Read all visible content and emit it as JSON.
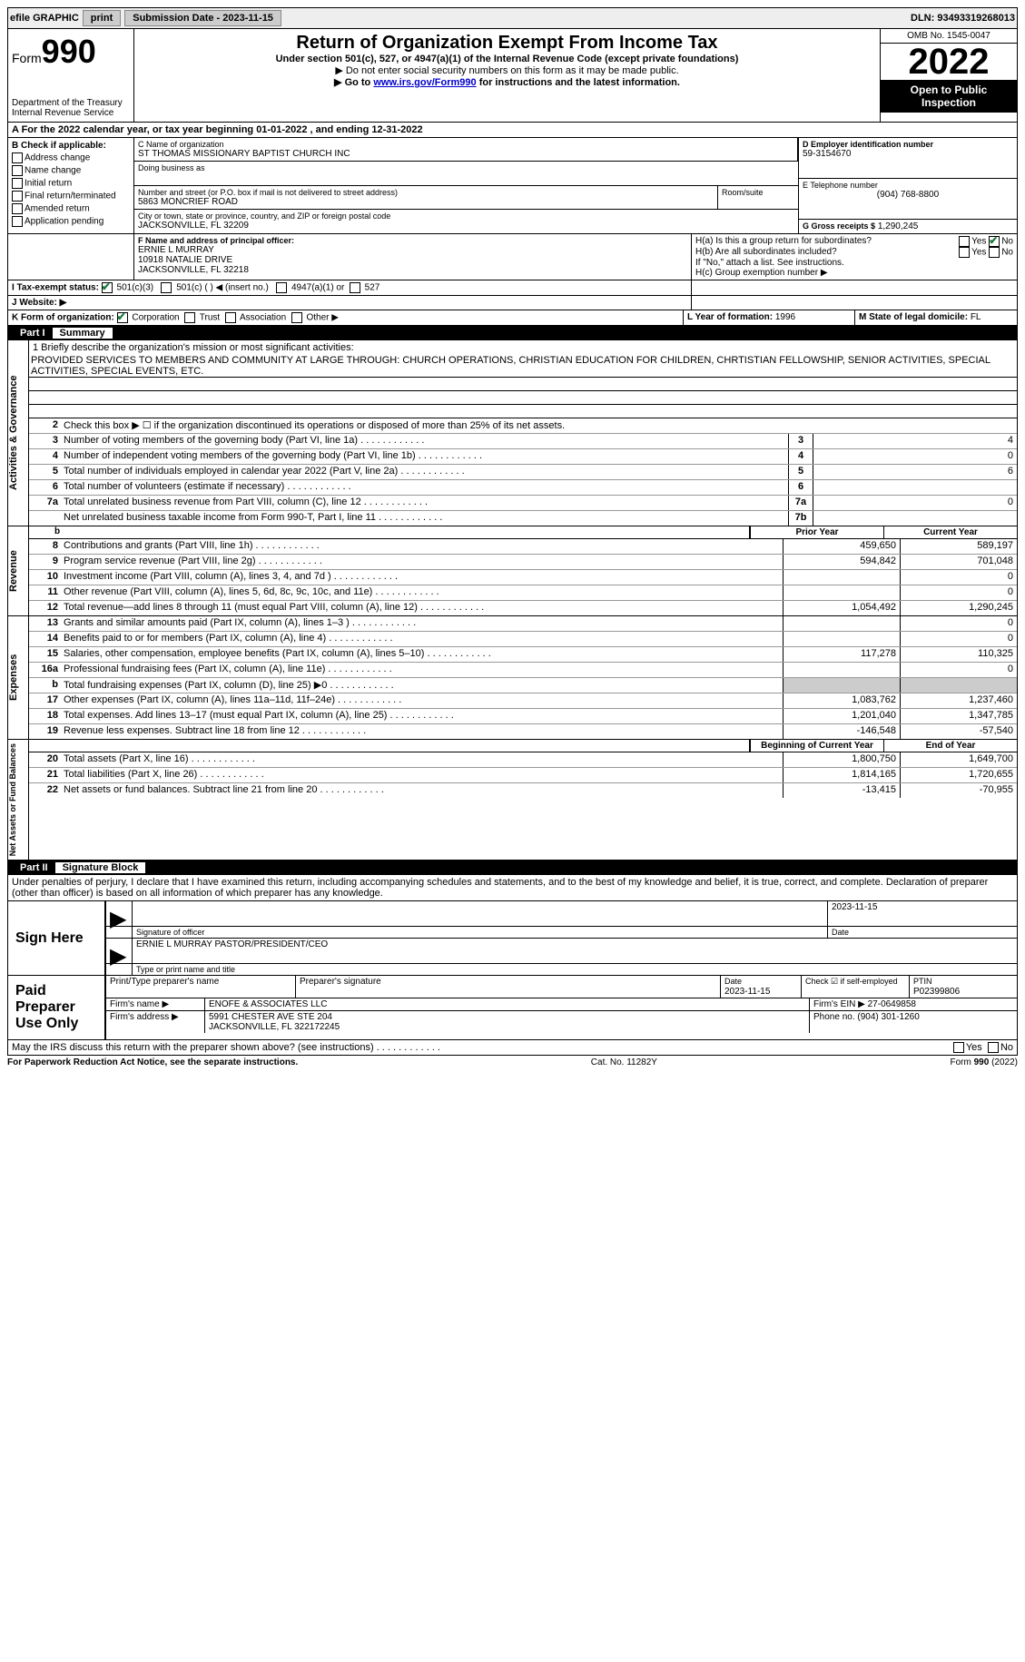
{
  "topbar": {
    "efile": "efile GRAPHIC",
    "print": "print",
    "sub_label": "Submission Date - 2023-11-15",
    "dln_label": "DLN: 93493319268013"
  },
  "header": {
    "form_word": "Form",
    "form_num": "990",
    "dept": "Department of the Treasury",
    "irs": "Internal Revenue Service",
    "title": "Return of Organization Exempt From Income Tax",
    "sub1": "Under section 501(c), 527, or 4947(a)(1) of the Internal Revenue Code (except private foundations)",
    "sub2": "▶ Do not enter social security numbers on this form as it may be made public.",
    "sub3_pre": "▶ Go to ",
    "sub3_link": "www.irs.gov/Form990",
    "sub3_post": " for instructions and the latest information.",
    "omb": "OMB No. 1545-0047",
    "year": "2022",
    "inspect": "Open to Public Inspection"
  },
  "lineA": "A For the 2022 calendar year, or tax year beginning 01-01-2022    , and ending 12-31-2022",
  "boxB": {
    "label": "B Check if applicable:",
    "items": [
      "Address change",
      "Name change",
      "Initial return",
      "Final return/terminated",
      "Amended return",
      "Application pending"
    ]
  },
  "boxC": {
    "name_label": "C Name of organization",
    "name": "ST THOMAS MISSIONARY BAPTIST CHURCH INC",
    "dba_label": "Doing business as",
    "addr_label": "Number and street (or P.O. box if mail is not delivered to street address)",
    "room_label": "Room/suite",
    "addr": "5863 MONCRIEF ROAD",
    "city_label": "City or town, state or province, country, and ZIP or foreign postal code",
    "city": "JACKSONVILLE, FL  32209"
  },
  "boxD": {
    "label": "D Employer identification number",
    "value": "59-3154670"
  },
  "boxE": {
    "label": "E Telephone number",
    "value": "(904) 768-8800"
  },
  "boxG": {
    "label": "G Gross receipts $",
    "value": "1,290,245"
  },
  "boxF": {
    "label": "F  Name and address of principal officer:",
    "name": "ERNIE L MURRAY",
    "addr1": "10918 NATALIE DRIVE",
    "addr2": "JACKSONVILLE, FL  32218"
  },
  "boxH": {
    "a": "H(a)  Is this a group return for subordinates?",
    "b": "H(b)  Are all subordinates included?",
    "b_note": "If \"No,\" attach a list. See instructions.",
    "c": "H(c)  Group exemption number ▶",
    "yes": "Yes",
    "no": "No"
  },
  "lineI": {
    "label": "I   Tax-exempt status:",
    "opt1": "501(c)(3)",
    "opt2": "501(c) (  ) ◀ (insert no.)",
    "opt3": "4947(a)(1) or",
    "opt4": "527"
  },
  "lineJ": "J   Website: ▶",
  "lineK": {
    "label": "K Form of organization:",
    "opts": [
      "Corporation",
      "Trust",
      "Association",
      "Other ▶"
    ]
  },
  "lineL": {
    "label": "L Year of formation:",
    "value": "1996"
  },
  "lineM": {
    "label": "M State of legal domicile:",
    "value": "FL"
  },
  "parts": {
    "p1": {
      "num": "Part I",
      "title": "Summary"
    },
    "p2": {
      "num": "Part II",
      "title": "Signature Block"
    }
  },
  "summary": {
    "line1_label": "1   Briefly describe the organization's mission or most significant activities:",
    "mission": "PROVIDED SERVICES TO MEMBERS AND COMMUNITY AT LARGE THROUGH: CHURCH OPERATIONS, CHRISTIAN EDUCATION FOR CHILDREN, CHRTISTIAN FELLOWSHIP, SENIOR ACTIVITIES, SPECIAL ACTIVITIES, SPECIAL EVENTS, ETC.",
    "line2": "Check this box ▶ ☐  if the organization discontinued its operations or disposed of more than 25% of its net assets.",
    "governance_side": "Activities & Governance",
    "rows_gov": [
      {
        "n": "3",
        "d": "Number of voting members of the governing body (Part VI, line 1a)",
        "box": "3",
        "v": "4"
      },
      {
        "n": "4",
        "d": "Number of independent voting members of the governing body (Part VI, line 1b)",
        "box": "4",
        "v": "0"
      },
      {
        "n": "5",
        "d": "Total number of individuals employed in calendar year 2022 (Part V, line 2a)",
        "box": "5",
        "v": "6"
      },
      {
        "n": "6",
        "d": "Total number of volunteers (estimate if necessary)",
        "box": "6",
        "v": ""
      },
      {
        "n": "7a",
        "d": "Total unrelated business revenue from Part VIII, column (C), line 12",
        "box": "7a",
        "v": "0"
      },
      {
        "n": "",
        "d": "Net unrelated business taxable income from Form 990-T, Part I, line 11",
        "box": "7b",
        "v": ""
      }
    ],
    "col_prior": "Prior Year",
    "col_current": "Current Year",
    "revenue_side": "Revenue",
    "rows_rev": [
      {
        "n": "8",
        "d": "Contributions and grants (Part VIII, line 1h)",
        "p": "459,650",
        "c": "589,197"
      },
      {
        "n": "9",
        "d": "Program service revenue (Part VIII, line 2g)",
        "p": "594,842",
        "c": "701,048"
      },
      {
        "n": "10",
        "d": "Investment income (Part VIII, column (A), lines 3, 4, and 7d )",
        "p": "",
        "c": "0"
      },
      {
        "n": "11",
        "d": "Other revenue (Part VIII, column (A), lines 5, 6d, 8c, 9c, 10c, and 11e)",
        "p": "",
        "c": "0"
      },
      {
        "n": "12",
        "d": "Total revenue—add lines 8 through 11 (must equal Part VIII, column (A), line 12)",
        "p": "1,054,492",
        "c": "1,290,245"
      }
    ],
    "expenses_side": "Expenses",
    "rows_exp": [
      {
        "n": "13",
        "d": "Grants and similar amounts paid (Part IX, column (A), lines 1–3 )",
        "p": "",
        "c": "0"
      },
      {
        "n": "14",
        "d": "Benefits paid to or for members (Part IX, column (A), line 4)",
        "p": "",
        "c": "0"
      },
      {
        "n": "15",
        "d": "Salaries, other compensation, employee benefits (Part IX, column (A), lines 5–10)",
        "p": "117,278",
        "c": "110,325"
      },
      {
        "n": "16a",
        "d": "Professional fundraising fees (Part IX, column (A), line 11e)",
        "p": "",
        "c": "0"
      },
      {
        "n": "b",
        "d": "Total fundraising expenses (Part IX, column (D), line 25) ▶0",
        "p": "shade",
        "c": "shade"
      },
      {
        "n": "17",
        "d": "Other expenses (Part IX, column (A), lines 11a–11d, 11f–24e)",
        "p": "1,083,762",
        "c": "1,237,460"
      },
      {
        "n": "18",
        "d": "Total expenses. Add lines 13–17 (must equal Part IX, column (A), line 25)",
        "p": "1,201,040",
        "c": "1,347,785"
      },
      {
        "n": "19",
        "d": "Revenue less expenses. Subtract line 18 from line 12",
        "p": "-146,548",
        "c": "-57,540"
      }
    ],
    "net_side": "Net Assets or Fund Balances",
    "col_begin": "Beginning of Current Year",
    "col_end": "End of Year",
    "rows_net": [
      {
        "n": "20",
        "d": "Total assets (Part X, line 16)",
        "p": "1,800,750",
        "c": "1,649,700"
      },
      {
        "n": "21",
        "d": "Total liabilities (Part X, line 26)",
        "p": "1,814,165",
        "c": "1,720,655"
      },
      {
        "n": "22",
        "d": "Net assets or fund balances. Subtract line 21 from line 20",
        "p": "-13,415",
        "c": "-70,955"
      }
    ]
  },
  "sig": {
    "penalty": "Under penalties of perjury, I declare that I have examined this return, including accompanying schedules and statements, and to the best of my knowledge and belief, it is true, correct, and complete. Declaration of preparer (other than officer) is based on all information of which preparer has any knowledge.",
    "sign_here": "Sign Here",
    "sig_officer": "Signature of officer",
    "sig_date": "2023-11-15",
    "date_label": "Date",
    "officer_name": "ERNIE L MURRAY  PASTOR/PRESIDENT/CEO",
    "type_name": "Type or print name and title",
    "paid_prep": "Paid Preparer Use Only",
    "prep_name_label": "Print/Type preparer's name",
    "prep_sig_label": "Preparer's signature",
    "prep_date_label": "Date",
    "prep_date": "2023-11-15",
    "check_self": "Check ☑ if self-employed",
    "ptin_label": "PTIN",
    "ptin": "P02399806",
    "firm_name_label": "Firm's name    ▶",
    "firm_name": "ENOFE & ASSOCIATES LLC",
    "firm_ein_label": "Firm's EIN ▶",
    "firm_ein": "27-0649858",
    "firm_addr_label": "Firm's address ▶",
    "firm_addr1": "5991 CHESTER AVE STE 204",
    "firm_addr2": "JACKSONVILLE, FL  322172245",
    "phone_label": "Phone no.",
    "phone": "(904) 301-1260",
    "discuss": "May the IRS discuss this return with the preparer shown above? (see instructions)",
    "yes": "Yes",
    "no": "No"
  },
  "footer": {
    "left": "For Paperwork Reduction Act Notice, see the separate instructions.",
    "mid": "Cat. No. 11282Y",
    "right": "Form 990 (2022)"
  }
}
